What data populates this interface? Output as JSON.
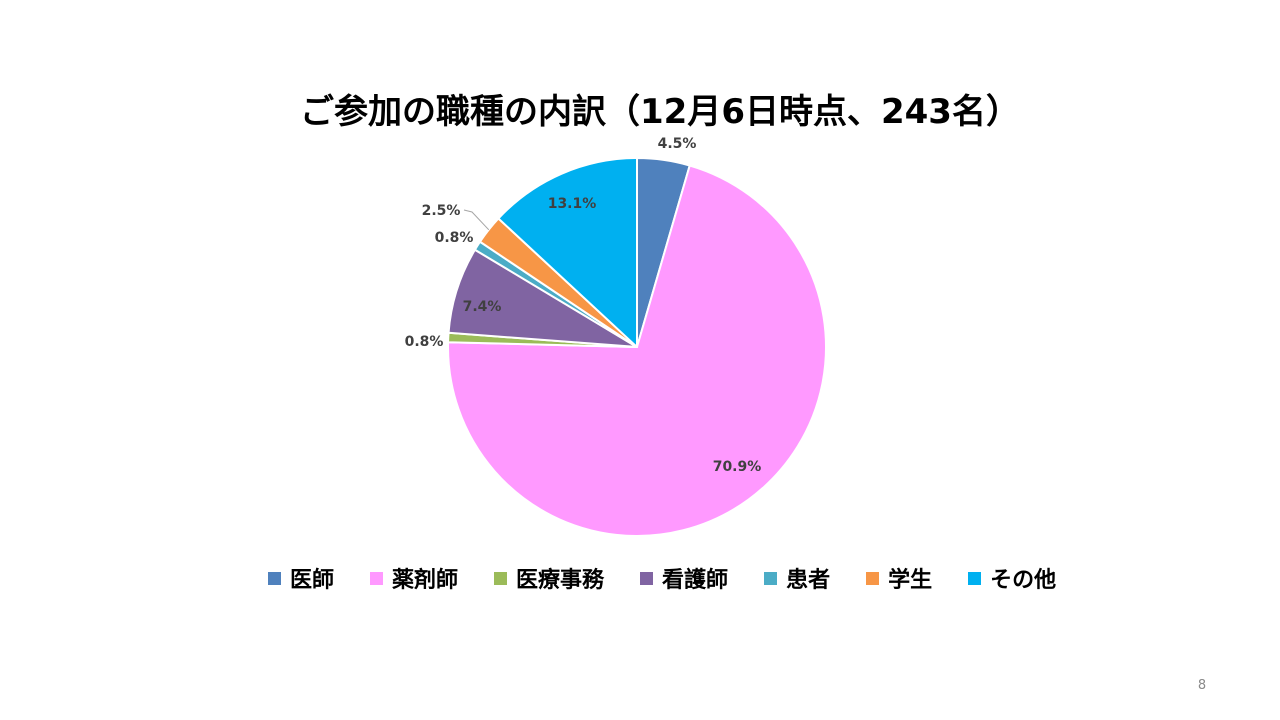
{
  "slide": {
    "title": "ご参加の職種の内訳（12月6日時点、243名）",
    "page_number": "8"
  },
  "chart_data": {
    "type": "pie",
    "title": "ご参加の職種の内訳（12月6日時点、243名）",
    "categories": [
      "医師",
      "薬剤師",
      "医療事務",
      "看護師",
      "患者",
      "学生",
      "その他"
    ],
    "values": [
      4.5,
      70.9,
      0.8,
      7.4,
      0.8,
      2.5,
      13.1
    ],
    "data_labels": [
      "4.5%",
      "70.9%",
      "0.8%",
      "7.4%",
      "0.8%",
      "2.5%",
      "13.1%"
    ],
    "colors": [
      "#4F81BD",
      "#FF99FF",
      "#9BBB59",
      "#8064A2",
      "#4BACC6",
      "#F79646",
      "#00B0F0"
    ],
    "start_angle": "12 o'clock",
    "direction": "clockwise",
    "legend_position": "bottom"
  }
}
